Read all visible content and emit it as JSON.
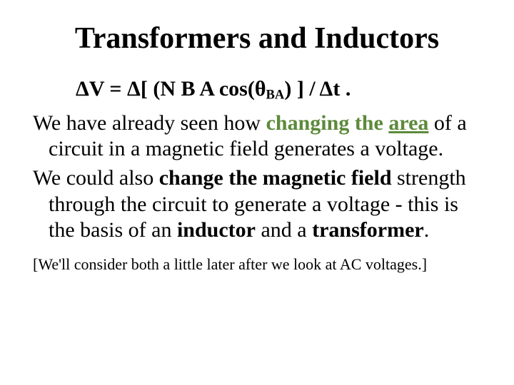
{
  "title": "Transformers and Inductors",
  "equation": {
    "d1": "Δ",
    "lhs": "V = ",
    "d2": "Δ",
    "mid1": "[ (N B A cos(",
    "theta": "θ",
    "subBA": "BA",
    "mid2": ") ] / ",
    "d3": "Δ",
    "tail": "t ."
  },
  "p1": {
    "pre": "We have already seen how ",
    "em1": "changing the ",
    "em2": "area",
    "post": " of a circuit in a magnetic field generates a voltage."
  },
  "p2": {
    "pre": "We could also ",
    "em": "change the magnetic field",
    "mid": " strength through the circuit to generate a voltage - this is the basis of an ",
    "b1": "inductor",
    "mid2": " and a ",
    "b2": "transformer",
    "end": "."
  },
  "footnote": "[We'll consider both a little later after we look at AC voltages.]"
}
